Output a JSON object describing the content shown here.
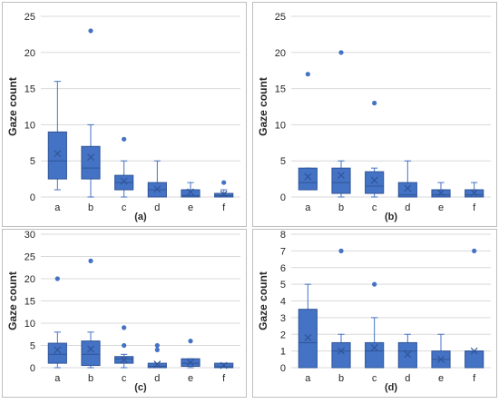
{
  "chart_data": [
    {
      "type": "box",
      "panel_label": "(a)",
      "ylabel": "Gaze count",
      "categories": [
        "a",
        "b",
        "c",
        "d",
        "e",
        "f"
      ],
      "yticks": [
        0,
        5,
        10,
        15,
        20,
        25
      ],
      "ylim": [
        0,
        25
      ],
      "grid": "horizontal",
      "boxes": [
        {
          "category": "a",
          "whisker_low": 1,
          "q1": 2.5,
          "median": 5,
          "q3": 9,
          "whisker_high": 16,
          "mean": 6,
          "outliers": []
        },
        {
          "category": "b",
          "whisker_low": 0,
          "q1": 2.5,
          "median": 4,
          "q3": 7,
          "whisker_high": 10,
          "mean": 5.5,
          "outliers": [
            23
          ]
        },
        {
          "category": "c",
          "whisker_low": 0,
          "q1": 1,
          "median": 2,
          "q3": 3,
          "whisker_high": 5,
          "mean": 2.2,
          "outliers": [
            8
          ]
        },
        {
          "category": "d",
          "whisker_low": 0,
          "q1": 0,
          "median": 1,
          "q3": 2,
          "whisker_high": 5,
          "mean": 1.1,
          "outliers": []
        },
        {
          "category": "e",
          "whisker_low": 0,
          "q1": 0,
          "median": 0.2,
          "q3": 1,
          "whisker_high": 2,
          "mean": 0.7,
          "outliers": []
        },
        {
          "category": "f",
          "whisker_low": 0,
          "q1": 0,
          "median": 0.2,
          "q3": 0.5,
          "whisker_high": 1,
          "mean": 0.4,
          "outliers": [
            2
          ]
        }
      ]
    },
    {
      "type": "box",
      "panel_label": "(b)",
      "ylabel": "Gaze count",
      "categories": [
        "a",
        "b",
        "c",
        "d",
        "e",
        "f"
      ],
      "yticks": [
        0,
        5,
        10,
        15,
        20,
        25
      ],
      "ylim": [
        0,
        25
      ],
      "grid": "horizontal",
      "boxes": [
        {
          "category": "a",
          "whisker_low": 1,
          "q1": 1,
          "median": 2,
          "q3": 4,
          "whisker_high": 4,
          "mean": 2.8,
          "outliers": [
            17
          ]
        },
        {
          "category": "b",
          "whisker_low": 0,
          "q1": 0.5,
          "median": 2,
          "q3": 4,
          "whisker_high": 5,
          "mean": 3,
          "outliers": [
            20
          ]
        },
        {
          "category": "c",
          "whisker_low": 0,
          "q1": 0.5,
          "median": 1.5,
          "q3": 3.5,
          "whisker_high": 4,
          "mean": 2.3,
          "outliers": [
            13
          ]
        },
        {
          "category": "d",
          "whisker_low": 0,
          "q1": 0,
          "median": 0.3,
          "q3": 2,
          "whisker_high": 5,
          "mean": 1.2,
          "outliers": []
        },
        {
          "category": "e",
          "whisker_low": 0,
          "q1": 0,
          "median": 0.3,
          "q3": 1,
          "whisker_high": 2,
          "mean": 0.6,
          "outliers": []
        },
        {
          "category": "f",
          "whisker_low": 0,
          "q1": 0,
          "median": 0.3,
          "q3": 1,
          "whisker_high": 2,
          "mean": 0.6,
          "outliers": []
        }
      ]
    },
    {
      "type": "box",
      "panel_label": "(c)",
      "ylabel": "Gaze count",
      "categories": [
        "a",
        "b",
        "c",
        "d",
        "e",
        "f"
      ],
      "yticks": [
        0,
        5,
        10,
        15,
        20,
        25,
        30
      ],
      "ylim": [
        0,
        30
      ],
      "grid": "horizontal",
      "boxes": [
        {
          "category": "a",
          "whisker_low": 0,
          "q1": 1,
          "median": 3,
          "q3": 5.5,
          "whisker_high": 8,
          "mean": 4,
          "outliers": [
            20
          ]
        },
        {
          "category": "b",
          "whisker_low": 0,
          "q1": 0.5,
          "median": 3,
          "q3": 6,
          "whisker_high": 8,
          "mean": 4.2,
          "outliers": [
            24
          ]
        },
        {
          "category": "c",
          "whisker_low": 0,
          "q1": 1,
          "median": 2,
          "q3": 2.5,
          "whisker_high": 3,
          "mean": 1.8,
          "outliers": [
            5,
            9
          ]
        },
        {
          "category": "d",
          "whisker_low": 0,
          "q1": 0,
          "median": 0.3,
          "q3": 1,
          "whisker_high": 1,
          "mean": 0.8,
          "outliers": [
            4,
            5
          ]
        },
        {
          "category": "e",
          "whisker_low": 0,
          "q1": 0.3,
          "median": 1,
          "q3": 2,
          "whisker_high": 2,
          "mean": 1.2,
          "outliers": [
            6
          ]
        },
        {
          "category": "f",
          "whisker_low": 0,
          "q1": 0,
          "median": 0.2,
          "q3": 1,
          "whisker_high": 1,
          "mean": 0.5,
          "outliers": []
        }
      ]
    },
    {
      "type": "box",
      "panel_label": "(d)",
      "ylabel": "Gaze count",
      "categories": [
        "a",
        "b",
        "c",
        "d",
        "e",
        "f"
      ],
      "yticks": [
        0,
        1,
        2,
        3,
        4,
        5,
        6,
        7,
        8
      ],
      "ylim": [
        0,
        8
      ],
      "grid": "horizontal",
      "boxes": [
        {
          "category": "a",
          "whisker_low": 0,
          "q1": 0,
          "median": 1.5,
          "q3": 3.5,
          "whisker_high": 5,
          "mean": 1.8,
          "outliers": []
        },
        {
          "category": "b",
          "whisker_low": 0,
          "q1": 0,
          "median": 1,
          "q3": 1.5,
          "whisker_high": 2,
          "mean": 1,
          "outliers": [
            7
          ]
        },
        {
          "category": "c",
          "whisker_low": 0,
          "q1": 0,
          "median": 1,
          "q3": 1.5,
          "whisker_high": 3,
          "mean": 1.2,
          "outliers": [
            5
          ]
        },
        {
          "category": "d",
          "whisker_low": 0,
          "q1": 0,
          "median": 1,
          "q3": 1.5,
          "whisker_high": 2,
          "mean": 0.8,
          "outliers": []
        },
        {
          "category": "e",
          "whisker_low": 0,
          "q1": 0,
          "median": 0.5,
          "q3": 1,
          "whisker_high": 2,
          "mean": 0.5,
          "outliers": []
        },
        {
          "category": "f",
          "whisker_low": 0,
          "q1": 0,
          "median": 1,
          "q3": 1,
          "whisker_high": 1,
          "mean": 1,
          "outliers": [
            7
          ]
        }
      ]
    }
  ],
  "style": {
    "box_fill": "#4472C4",
    "box_stroke": "#2F5597",
    "whisker_color": "#4472C4",
    "grid_color": "#D9D9D9",
    "text_color": "#262626",
    "panel_border": "#BFBFBF"
  }
}
